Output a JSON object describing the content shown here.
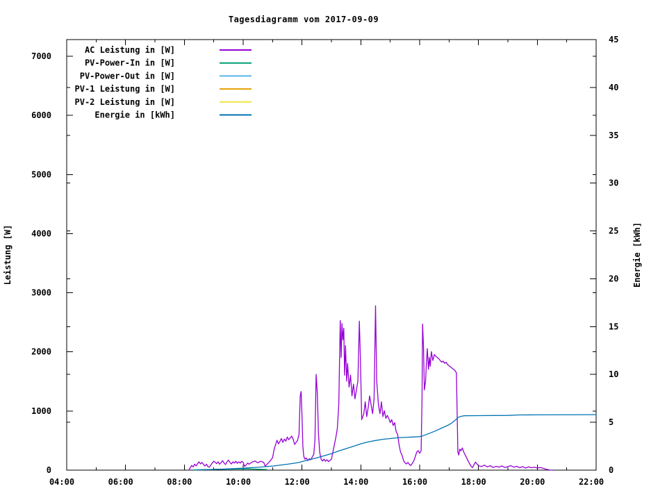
{
  "page": {
    "background": "#ffffff"
  },
  "chart_data": {
    "type": "line",
    "title": "Tagesdiagramm vom 2017-09-09",
    "xlabel": "",
    "ylabel": "Leistung [W]",
    "y2label": "Energie [kWh]",
    "grid": false,
    "legend_position": "top-left-inside",
    "x_axis": {
      "range_hours": [
        4,
        22
      ],
      "ticks_major": [
        {
          "hour": 4,
          "label": "04:00"
        },
        {
          "hour": 6,
          "label": "06:00"
        },
        {
          "hour": 8,
          "label": "08:00"
        },
        {
          "hour": 10,
          "label": "10:00"
        },
        {
          "hour": 12,
          "label": "12:00"
        },
        {
          "hour": 14,
          "label": "14:00"
        },
        {
          "hour": 16,
          "label": "16:00"
        },
        {
          "hour": 18,
          "label": "18:00"
        },
        {
          "hour": 20,
          "label": "20:00"
        },
        {
          "hour": 22,
          "label": "22:00"
        }
      ],
      "ticks_minor_hours": [
        5,
        7,
        9,
        11,
        13,
        15,
        17,
        19,
        21
      ]
    },
    "y_axis": {
      "range": [
        0,
        7282
      ],
      "ticks": [
        0,
        1000,
        2000,
        3000,
        4000,
        5000,
        6000,
        7000
      ]
    },
    "y2_axis": {
      "range": [
        0,
        45
      ],
      "ticks": [
        0,
        5,
        10,
        15,
        20,
        25,
        30,
        35,
        40,
        45
      ]
    },
    "series": [
      {
        "id": "ac-leistung",
        "name": "AC Leistung in [W]",
        "color": "#9400d3",
        "axis": "y1",
        "points": [
          [
            8.15,
            0
          ],
          [
            8.2,
            40
          ],
          [
            8.25,
            80
          ],
          [
            8.3,
            55
          ],
          [
            8.35,
            100
          ],
          [
            8.4,
            70
          ],
          [
            8.45,
            110
          ],
          [
            8.5,
            140
          ],
          [
            8.55,
            105
          ],
          [
            8.6,
            130
          ],
          [
            8.65,
            95
          ],
          [
            8.7,
            70
          ],
          [
            8.75,
            100
          ],
          [
            8.8,
            60
          ],
          [
            8.85,
            50
          ],
          [
            8.9,
            85
          ],
          [
            8.95,
            120
          ],
          [
            9.0,
            150
          ],
          [
            9.05,
            130
          ],
          [
            9.1,
            110
          ],
          [
            9.15,
            140
          ],
          [
            9.2,
            100
          ],
          [
            9.25,
            130
          ],
          [
            9.3,
            160
          ],
          [
            9.35,
            120
          ],
          [
            9.4,
            95
          ],
          [
            9.45,
            140
          ],
          [
            9.5,
            170
          ],
          [
            9.55,
            130
          ],
          [
            9.6,
            105
          ],
          [
            9.65,
            140
          ],
          [
            9.7,
            120
          ],
          [
            9.75,
            150
          ],
          [
            9.8,
            115
          ],
          [
            9.85,
            140
          ],
          [
            9.9,
            120
          ],
          [
            9.95,
            150
          ],
          [
            10.0,
            130
          ],
          [
            10.05,
            65
          ],
          [
            10.1,
            85
          ],
          [
            10.15,
            120
          ],
          [
            10.2,
            100
          ],
          [
            10.3,
            135
          ],
          [
            10.4,
            155
          ],
          [
            10.5,
            125
          ],
          [
            10.6,
            150
          ],
          [
            10.7,
            130
          ],
          [
            10.75,
            65
          ],
          [
            10.8,
            95
          ],
          [
            10.9,
            145
          ],
          [
            11.0,
            210
          ],
          [
            11.05,
            350
          ],
          [
            11.1,
            430
          ],
          [
            11.15,
            505
          ],
          [
            11.2,
            445
          ],
          [
            11.25,
            485
          ],
          [
            11.3,
            535
          ],
          [
            11.35,
            470
          ],
          [
            11.4,
            525
          ],
          [
            11.45,
            490
          ],
          [
            11.5,
            560
          ],
          [
            11.55,
            515
          ],
          [
            11.6,
            545
          ],
          [
            11.65,
            575
          ],
          [
            11.7,
            520
          ],
          [
            11.75,
            435
          ],
          [
            11.8,
            470
          ],
          [
            11.85,
            505
          ],
          [
            11.9,
            610
          ],
          [
            11.94,
            1255
          ],
          [
            11.97,
            1330
          ],
          [
            12.0,
            905
          ],
          [
            12.03,
            405
          ],
          [
            12.06,
            235
          ],
          [
            12.1,
            185
          ],
          [
            12.15,
            205
          ],
          [
            12.2,
            160
          ],
          [
            12.25,
            195
          ],
          [
            12.3,
            175
          ],
          [
            12.35,
            225
          ],
          [
            12.4,
            265
          ],
          [
            12.44,
            510
          ],
          [
            12.48,
            1620
          ],
          [
            12.52,
            1300
          ],
          [
            12.56,
            610
          ],
          [
            12.6,
            305
          ],
          [
            12.65,
            185
          ],
          [
            12.7,
            155
          ],
          [
            12.75,
            185
          ],
          [
            12.8,
            150
          ],
          [
            12.85,
            175
          ],
          [
            12.9,
            145
          ],
          [
            12.95,
            165
          ],
          [
            13.0,
            185
          ],
          [
            13.05,
            305
          ],
          [
            13.1,
            425
          ],
          [
            13.15,
            555
          ],
          [
            13.2,
            705
          ],
          [
            13.25,
            1105
          ],
          [
            13.3,
            2530
          ],
          [
            13.33,
            1905
          ],
          [
            13.36,
            2480
          ],
          [
            13.39,
            2205
          ],
          [
            13.42,
            2400
          ],
          [
            13.45,
            1605
          ],
          [
            13.48,
            2105
          ],
          [
            13.52,
            1505
          ],
          [
            13.55,
            1805
          ],
          [
            13.6,
            1405
          ],
          [
            13.65,
            1605
          ],
          [
            13.7,
            1255
          ],
          [
            13.75,
            1455
          ],
          [
            13.8,
            1205
          ],
          [
            13.85,
            1355
          ],
          [
            13.9,
            1505
          ],
          [
            13.95,
            2520
          ],
          [
            13.99,
            1805
          ],
          [
            14.03,
            855
          ],
          [
            14.1,
            955
          ],
          [
            14.15,
            1155
          ],
          [
            14.2,
            905
          ],
          [
            14.25,
            1055
          ],
          [
            14.3,
            1255
          ],
          [
            14.35,
            1105
          ],
          [
            14.4,
            955
          ],
          [
            14.45,
            1205
          ],
          [
            14.5,
            2780
          ],
          [
            14.54,
            1505
          ],
          [
            14.6,
            1105
          ],
          [
            14.65,
            955
          ],
          [
            14.7,
            1155
          ],
          [
            14.75,
            905
          ],
          [
            14.8,
            1005
          ],
          [
            14.85,
            875
          ],
          [
            14.9,
            925
          ],
          [
            14.95,
            875
          ],
          [
            15.0,
            805
          ],
          [
            15.05,
            855
          ],
          [
            15.1,
            755
          ],
          [
            15.15,
            805
          ],
          [
            15.2,
            655
          ],
          [
            15.25,
            605
          ],
          [
            15.3,
            425
          ],
          [
            15.35,
            305
          ],
          [
            15.4,
            255
          ],
          [
            15.45,
            165
          ],
          [
            15.5,
            125
          ],
          [
            15.55,
            105
          ],
          [
            15.6,
            130
          ],
          [
            15.65,
            95
          ],
          [
            15.7,
            80
          ],
          [
            15.75,
            115
          ],
          [
            15.8,
            155
          ],
          [
            15.85,
            225
          ],
          [
            15.9,
            305
          ],
          [
            15.95,
            330
          ],
          [
            16.0,
            285
          ],
          [
            16.05,
            325
          ],
          [
            16.08,
            1205
          ],
          [
            16.1,
            2470
          ],
          [
            16.13,
            2105
          ],
          [
            16.16,
            1355
          ],
          [
            16.2,
            1505
          ],
          [
            16.23,
            1805
          ],
          [
            16.26,
            2055
          ],
          [
            16.3,
            1705
          ],
          [
            16.33,
            1905
          ],
          [
            16.36,
            1755
          ],
          [
            16.4,
            2005
          ],
          [
            16.45,
            1855
          ],
          [
            16.5,
            1955
          ],
          [
            16.55,
            1925
          ],
          [
            16.6,
            1905
          ],
          [
            16.65,
            1885
          ],
          [
            16.7,
            1855
          ],
          [
            16.75,
            1825
          ],
          [
            16.8,
            1845
          ],
          [
            16.85,
            1805
          ],
          [
            16.9,
            1825
          ],
          [
            16.95,
            1785
          ],
          [
            17.0,
            1765
          ],
          [
            17.05,
            1745
          ],
          [
            17.1,
            1725
          ],
          [
            17.15,
            1705
          ],
          [
            17.2,
            1685
          ],
          [
            17.25,
            1645
          ],
          [
            17.28,
            805
          ],
          [
            17.3,
            305
          ],
          [
            17.33,
            255
          ],
          [
            17.36,
            355
          ],
          [
            17.4,
            325
          ],
          [
            17.45,
            375
          ],
          [
            17.5,
            305
          ],
          [
            17.55,
            255
          ],
          [
            17.6,
            205
          ],
          [
            17.65,
            155
          ],
          [
            17.7,
            105
          ],
          [
            17.75,
            65
          ],
          [
            17.8,
            45
          ],
          [
            17.85,
            95
          ],
          [
            17.9,
            135
          ],
          [
            17.95,
            105
          ],
          [
            18.0,
            75
          ],
          [
            18.1,
            60
          ],
          [
            18.2,
            85
          ],
          [
            18.3,
            55
          ],
          [
            18.4,
            75
          ],
          [
            18.5,
            45
          ],
          [
            18.6,
            65
          ],
          [
            18.7,
            50
          ],
          [
            18.8,
            70
          ],
          [
            18.9,
            45
          ],
          [
            19.0,
            60
          ],
          [
            19.1,
            75
          ],
          [
            19.2,
            50
          ],
          [
            19.3,
            65
          ],
          [
            19.4,
            40
          ],
          [
            19.5,
            60
          ],
          [
            19.6,
            35
          ],
          [
            19.7,
            55
          ],
          [
            19.8,
            40
          ],
          [
            19.9,
            50
          ],
          [
            20.0,
            35
          ],
          [
            20.1,
            45
          ],
          [
            20.2,
            30
          ],
          [
            20.3,
            15
          ],
          [
            20.4,
            5
          ],
          [
            20.5,
            0
          ]
        ]
      },
      {
        "id": "pv-power-in",
        "name": "PV-Power-In in [W]",
        "color": "#009e73",
        "axis": "y1",
        "points": [
          [
            8.3,
            5
          ],
          [
            8.8,
            10
          ],
          [
            9.3,
            15
          ],
          [
            9.8,
            20
          ],
          [
            10.2,
            20
          ],
          [
            10.5,
            15
          ],
          [
            10.8,
            10
          ]
        ]
      },
      {
        "id": "pv-power-out",
        "name": "PV-Power-Out in [W]",
        "color": "#56b4e9",
        "axis": "y1",
        "points": []
      },
      {
        "id": "pv-1-leistung",
        "name": "PV-1 Leistung in [W]",
        "color": "#e69f00",
        "axis": "y1",
        "points": []
      },
      {
        "id": "pv-2-leistung",
        "name": "PV-2 Leistung in [W]",
        "color": "#f0e442",
        "axis": "y1",
        "points": []
      },
      {
        "id": "energie",
        "name": "Energie in [kWh]",
        "color": "#0072b2",
        "axis": "y2",
        "points": [
          [
            8.4,
            0.02
          ],
          [
            9.0,
            0.07
          ],
          [
            9.5,
            0.13
          ],
          [
            10.0,
            0.2
          ],
          [
            10.5,
            0.3
          ],
          [
            11.0,
            0.43
          ],
          [
            11.5,
            0.62
          ],
          [
            11.9,
            0.8
          ],
          [
            12.0,
            0.9
          ],
          [
            12.5,
            1.28
          ],
          [
            13.0,
            1.72
          ],
          [
            13.25,
            2.0
          ],
          [
            13.5,
            2.25
          ],
          [
            13.75,
            2.5
          ],
          [
            14.0,
            2.75
          ],
          [
            14.25,
            2.95
          ],
          [
            14.5,
            3.1
          ],
          [
            14.75,
            3.22
          ],
          [
            15.0,
            3.3
          ],
          [
            15.25,
            3.38
          ],
          [
            15.5,
            3.42
          ],
          [
            15.75,
            3.46
          ],
          [
            16.0,
            3.5
          ],
          [
            16.1,
            3.57
          ],
          [
            16.25,
            3.75
          ],
          [
            16.5,
            4.05
          ],
          [
            16.75,
            4.4
          ],
          [
            17.0,
            4.75
          ],
          [
            17.1,
            4.95
          ],
          [
            17.2,
            5.2
          ],
          [
            17.3,
            5.5
          ],
          [
            17.4,
            5.62
          ],
          [
            17.5,
            5.68
          ],
          [
            18.0,
            5.7
          ],
          [
            19.0,
            5.72
          ],
          [
            19.4,
            5.77
          ],
          [
            20.0,
            5.78
          ],
          [
            22.0,
            5.8
          ]
        ]
      }
    ]
  }
}
